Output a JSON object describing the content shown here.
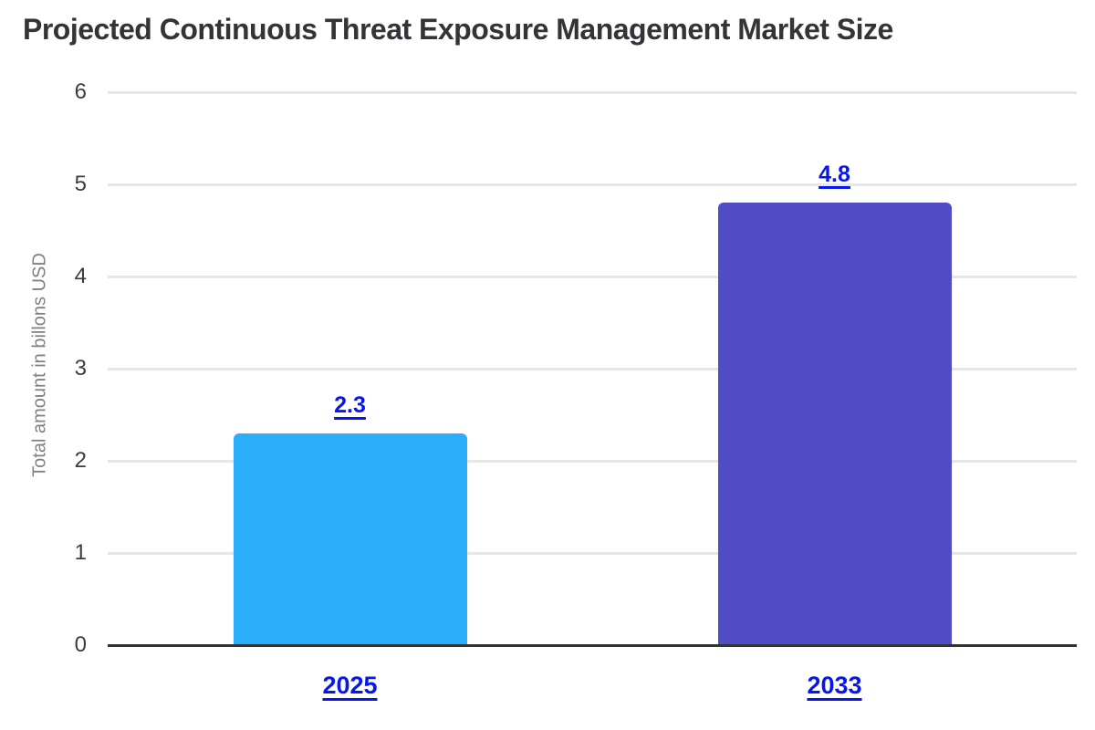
{
  "title": "Projected Continuous Threat Exposure Management Market Size",
  "colors": {
    "title_text": "#333338",
    "axis_title_text": "#808080",
    "tick_text": "#3c3c3c",
    "gridline": "#e6e6e6",
    "baseline": "#333333",
    "label_link_blue": "#0716ee",
    "bar_2025": "#2badfa",
    "bar_2033": "#4f4cc5"
  },
  "chart_data": {
    "type": "bar",
    "title": "Projected Continuous Threat Exposure Management Market Size",
    "categories": [
      "2025",
      "2033"
    ],
    "values": [
      2.3,
      4.8
    ],
    "data_labels": [
      "2.3",
      "4.8"
    ],
    "bar_colors": [
      "#2badfa",
      "#4f4cc5"
    ],
    "xlabel": "",
    "ylabel": "Total amount in billons USD",
    "ylim": [
      0,
      6
    ],
    "yticks": [
      0,
      1,
      2,
      3,
      4,
      5,
      6
    ],
    "grid": "horizontal",
    "legend": "none"
  }
}
